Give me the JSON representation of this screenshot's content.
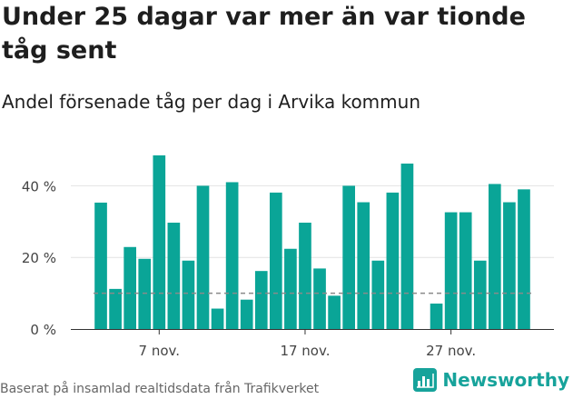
{
  "title": "Under 25 dagar var mer än var tionde tåg sent",
  "subtitle": "Andel försenade tåg per dag i Arvika kommun",
  "footer": "Baserat på insamlad realtidsdata från Trafikverket",
  "logo_text": "Newsworthy",
  "colors": {
    "bar": "#0aa597",
    "grid": "#e2e2e2",
    "reference_line": "#8a8a8a",
    "brand": "#17a39b"
  },
  "chart_data": {
    "type": "bar",
    "x": [
      "3 nov.",
      "4 nov.",
      "5 nov.",
      "6 nov.",
      "7 nov.",
      "8 nov.",
      "9 nov.",
      "10 nov.",
      "11 nov.",
      "12 nov.",
      "13 nov.",
      "14 nov.",
      "15 nov.",
      "16 nov.",
      "17 nov.",
      "18 nov.",
      "19 nov.",
      "20 nov.",
      "21 nov.",
      "22 nov.",
      "23 nov.",
      "24 nov.",
      "25 nov.",
      "26 nov.",
      "27 nov.",
      "28 nov.",
      "29 nov.",
      "30 nov.",
      "1 dec.",
      "2 dec."
    ],
    "values": [
      35.3,
      11.2,
      22.9,
      19.6,
      48.5,
      29.7,
      19.1,
      40.0,
      5.7,
      41.0,
      8.2,
      16.2,
      38.1,
      22.4,
      29.7,
      16.9,
      9.3,
      40.0,
      35.4,
      19.1,
      38.1,
      46.2,
      null,
      7.1,
      32.6,
      32.6,
      19.1,
      40.5,
      35.4,
      39.0
    ],
    "x_ticks": [
      "7 nov.",
      "17 nov.",
      "27 nov."
    ],
    "y_ticks": [
      0,
      20,
      40
    ],
    "y_tick_labels": [
      "0 %",
      "20 %",
      "40 %"
    ],
    "ylim": [
      0,
      50
    ],
    "reference_line": 10,
    "grid": true,
    "xlabel": "",
    "ylabel": ""
  }
}
